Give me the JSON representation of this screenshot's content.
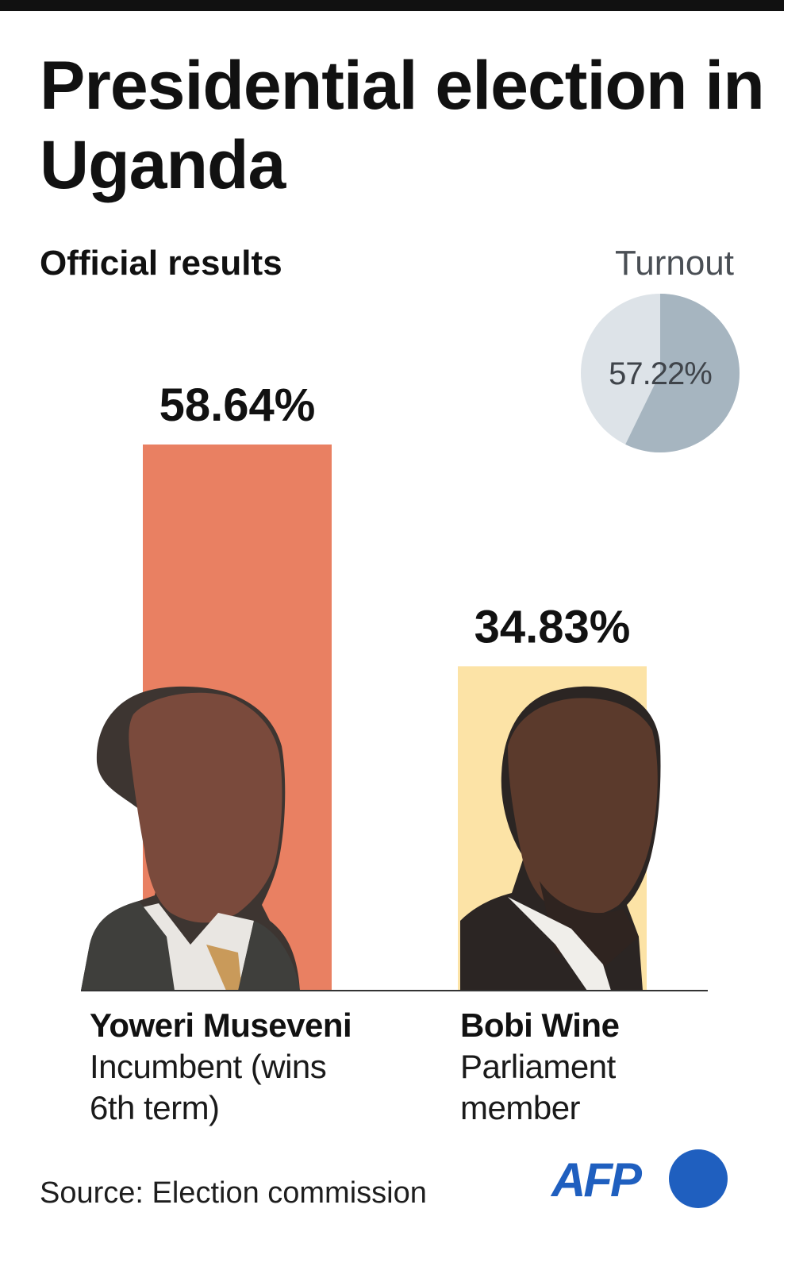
{
  "title": "Presidential election in Uganda",
  "subtitle": "Official results",
  "turnout": {
    "label": "Turnout",
    "value": 57.22,
    "value_label": "57.22%"
  },
  "chart_data": {
    "type": "bar",
    "title": "Presidential election in Uganda",
    "subtitle": "Official results",
    "categories": [
      "Yoweri Museveni",
      "Bobi Wine"
    ],
    "values": [
      58.64,
      34.83
    ],
    "value_labels": [
      "58.64%",
      "34.83%"
    ],
    "ylim": [
      0,
      60
    ],
    "grid": false,
    "legend": "none",
    "colors": [
      "#e98062",
      "#fce3a6"
    ]
  },
  "candidates": [
    {
      "name": "Yoweri Museveni",
      "description": "Incumbent (wins 6th term)",
      "photo": "portrait-museveni"
    },
    {
      "name": "Bobi Wine",
      "description": "Parliament member",
      "photo": "portrait-bobi-wine"
    }
  ],
  "source": "Source: Election commission",
  "logo": {
    "text": "AFP",
    "color": "#1f5fbf"
  }
}
